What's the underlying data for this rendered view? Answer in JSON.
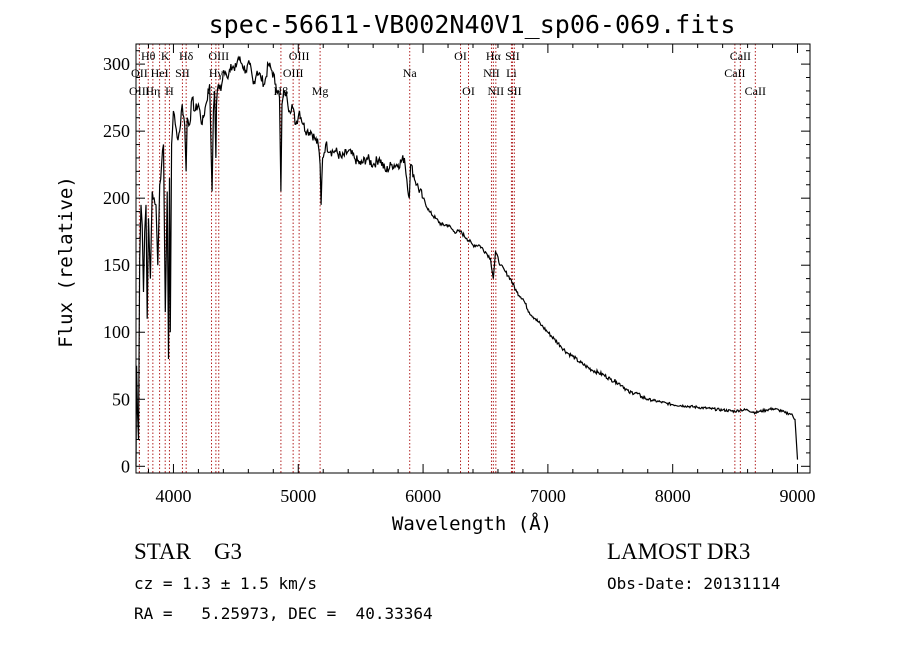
{
  "chart_data": {
    "type": "line",
    "title": "spec-56611-VB002N40V1_sp06-069.fits",
    "xlabel": "Wavelength (Å)",
    "ylabel": "Flux (relative)",
    "xlim": [
      3700,
      9100
    ],
    "ylim": [
      -5,
      315
    ],
    "xticks": [
      4000,
      5000,
      6000,
      7000,
      8000,
      9000
    ],
    "yticks": [
      0,
      50,
      100,
      150,
      200,
      250,
      300
    ],
    "series": [
      {
        "name": "flux",
        "x": [
          3700,
          3705,
          3712,
          3720,
          3730,
          3740,
          3750,
          3760,
          3770,
          3780,
          3790,
          3800,
          3815,
          3830,
          3845,
          3860,
          3875,
          3890,
          3905,
          3920,
          3935,
          3950,
          3960,
          3968,
          3975,
          3985,
          4000,
          4015,
          4030,
          4050,
          4070,
          4090,
          4101,
          4110,
          4130,
          4150,
          4170,
          4200,
          4230,
          4260,
          4290,
          4310,
          4320,
          4330,
          4340,
          4345,
          4360,
          4380,
          4400,
          4430,
          4460,
          4490,
          4520,
          4550,
          4580,
          4610,
          4640,
          4670,
          4700,
          4730,
          4760,
          4790,
          4820,
          4850,
          4861,
          4870,
          4890,
          4910,
          4930,
          4950,
          4980,
          5010,
          5040,
          5070,
          5100,
          5130,
          5160,
          5175,
          5183,
          5195,
          5220,
          5260,
          5300,
          5350,
          5400,
          5450,
          5500,
          5550,
          5600,
          5650,
          5700,
          5750,
          5800,
          5850,
          5890,
          5896,
          5900,
          5950,
          6000,
          6050,
          6100,
          6150,
          6200,
          6250,
          6300,
          6350,
          6400,
          6450,
          6500,
          6540,
          6563,
          6580,
          6620,
          6660,
          6700,
          6750,
          6800,
          6850,
          6900,
          6950,
          7000,
          7050,
          7100,
          7150,
          7200,
          7250,
          7300,
          7350,
          7400,
          7450,
          7500,
          7550,
          7600,
          7650,
          7700,
          7750,
          7800,
          7850,
          7900,
          7950,
          8000,
          8100,
          8200,
          8300,
          8400,
          8498,
          8542,
          8600,
          8662,
          8700,
          8750,
          8800,
          8850,
          8900,
          8950,
          8980,
          9000
        ],
        "y": [
          0,
          75,
          40,
          20,
          155,
          195,
          180,
          130,
          175,
          195,
          110,
          185,
          140,
          205,
          200,
          195,
          150,
          210,
          225,
          240,
          115,
          205,
          80,
          215,
          100,
          240,
          265,
          255,
          245,
          250,
          270,
          255,
          220,
          260,
          255,
          275,
          265,
          270,
          255,
          270,
          285,
          205,
          265,
          280,
          230,
          270,
          285,
          280,
          295,
          290,
          300,
          295,
          305,
          300,
          295,
          300,
          285,
          295,
          290,
          285,
          300,
          295,
          285,
          275,
          205,
          270,
          280,
          275,
          265,
          270,
          255,
          265,
          255,
          250,
          250,
          245,
          240,
          225,
          195,
          230,
          240,
          235,
          235,
          230,
          235,
          230,
          225,
          230,
          225,
          230,
          220,
          225,
          225,
          230,
          200,
          215,
          225,
          210,
          200,
          190,
          185,
          180,
          180,
          175,
          175,
          170,
          165,
          165,
          160,
          155,
          140,
          160,
          150,
          145,
          140,
          130,
          125,
          115,
          110,
          105,
          100,
          95,
          90,
          85,
          82,
          78,
          75,
          72,
          70,
          68,
          65,
          63,
          60,
          55,
          55,
          52,
          50,
          49,
          48,
          47,
          46,
          45,
          44,
          43,
          42,
          41,
          42,
          42,
          40,
          41,
          42,
          43,
          42,
          40,
          39,
          35,
          5
        ]
      }
    ],
    "line_labels": [
      {
        "text": "Hθ",
        "wl": 3798,
        "row": 0
      },
      {
        "text": "K",
        "wl": 3934,
        "row": 0
      },
      {
        "text": "Hδ",
        "wl": 4102,
        "row": 0
      },
      {
        "text": "OIII",
        "wl": 4363,
        "row": 0
      },
      {
        "text": "OIII",
        "wl": 5007,
        "row": 0
      },
      {
        "text": "OI",
        "wl": 6300,
        "row": 0
      },
      {
        "text": "Hα",
        "wl": 6563,
        "row": 0
      },
      {
        "text": "SII",
        "wl": 6716,
        "row": 0
      },
      {
        "text": "CaII",
        "wl": 8542,
        "row": 0
      },
      {
        "text": "OII",
        "wl": 3727,
        "row": 1
      },
      {
        "text": "HeI",
        "wl": 3889,
        "row": 1
      },
      {
        "text": "SII",
        "wl": 4072,
        "row": 1
      },
      {
        "text": "Hγ",
        "wl": 4340,
        "row": 1
      },
      {
        "text": "OIII",
        "wl": 4959,
        "row": 1
      },
      {
        "text": "Na",
        "wl": 5893,
        "row": 1
      },
      {
        "text": "NII",
        "wl": 6548,
        "row": 1
      },
      {
        "text": "Li",
        "wl": 6708,
        "row": 1
      },
      {
        "text": "CaII",
        "wl": 8498,
        "row": 1
      },
      {
        "text": "OIII",
        "wl": 3727,
        "row": 2
      },
      {
        "text": "Hη",
        "wl": 3835,
        "row": 2
      },
      {
        "text": "H",
        "wl": 3968,
        "row": 2
      },
      {
        "text": "G",
        "wl": 4305,
        "row": 2
      },
      {
        "text": "Hβ",
        "wl": 4861,
        "row": 2
      },
      {
        "text": "Mg",
        "wl": 5175,
        "row": 2
      },
      {
        "text": "OI",
        "wl": 6364,
        "row": 2
      },
      {
        "text": "NII",
        "wl": 6583,
        "row": 2
      },
      {
        "text": "SII",
        "wl": 6731,
        "row": 2
      },
      {
        "text": "CaII",
        "wl": 8662,
        "row": 2
      }
    ],
    "marker_lines": [
      3727,
      3798,
      3835,
      3889,
      3934,
      3968,
      4072,
      4102,
      4305,
      4340,
      4363,
      4861,
      4959,
      5007,
      5175,
      5893,
      6300,
      6364,
      6548,
      6563,
      6583,
      6708,
      6716,
      6731,
      8498,
      8542,
      8662
    ],
    "colors": {
      "spectrum": "#000000",
      "marker": "#b22222",
      "axis": "#000000"
    }
  },
  "info": {
    "class_line": "STAR    G3",
    "survey": "LAMOST DR3",
    "cz": "cz = 1.3 ± 1.5 km/s",
    "obs_date": "Obs-Date: 20131114",
    "radec": "RA =   5.25973, DEC =  40.33364"
  }
}
